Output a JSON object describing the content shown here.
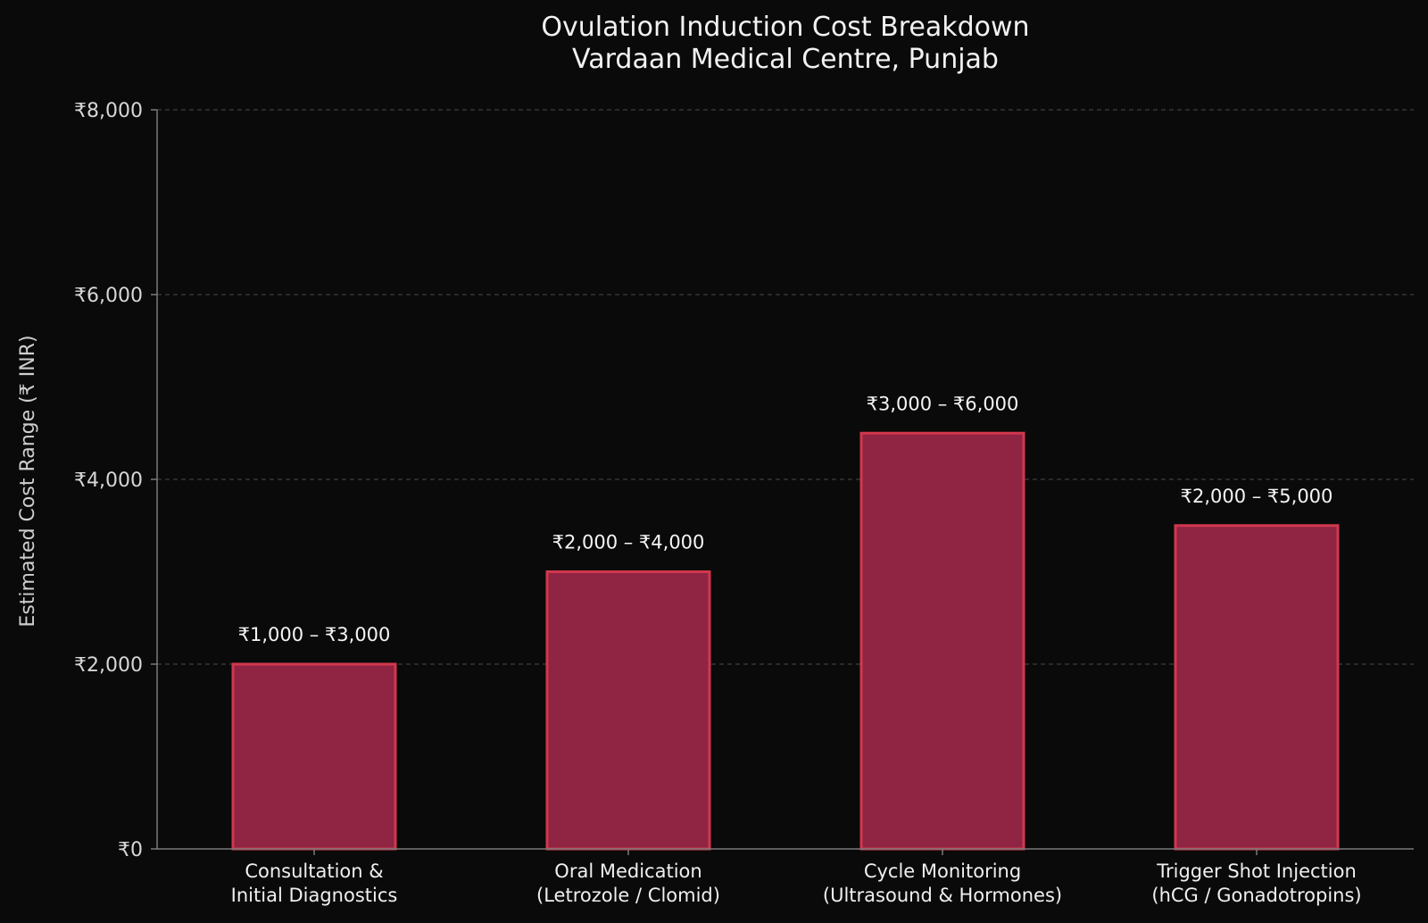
{
  "chart_data": {
    "type": "bar",
    "title": "Ovulation Induction Cost Breakdown",
    "subtitle": "Vardaan Medical Centre, Punjab",
    "xlabel": "",
    "ylabel": "Estimated Cost Range (₹ INR)",
    "categories": [
      [
        "Consultation &",
        "Initial Diagnostics"
      ],
      [
        "Oral Medication",
        "(Letrozole / Clomid)"
      ],
      [
        "Cycle Monitoring",
        "(Ultrasound & Hormones)"
      ],
      [
        "Trigger Shot Injection",
        "(hCG / Gonadotropins)"
      ]
    ],
    "values": [
      2000,
      3000,
      4500,
      3500
    ],
    "data_labels": [
      "₹1,000 – ₹3,000",
      "₹2,000 – ₹4,000",
      "₹3,000 – ₹6,000",
      "₹2,000 – ₹5,000"
    ],
    "ylim": [
      0,
      8000
    ],
    "yticks": [
      0,
      2000,
      4000,
      6000,
      8000
    ],
    "ytick_labels": [
      "₹0",
      "₹2,000",
      "₹4,000",
      "₹6,000",
      "₹8,000"
    ],
    "grid": true,
    "legend": "none",
    "colors": {
      "background": "#0a0a0a",
      "bar_fill": "#8f2443",
      "bar_stroke": "#d2374d",
      "grid": "#4a4a4a",
      "axis": "#7a7a7a",
      "text": "#efefef"
    }
  }
}
